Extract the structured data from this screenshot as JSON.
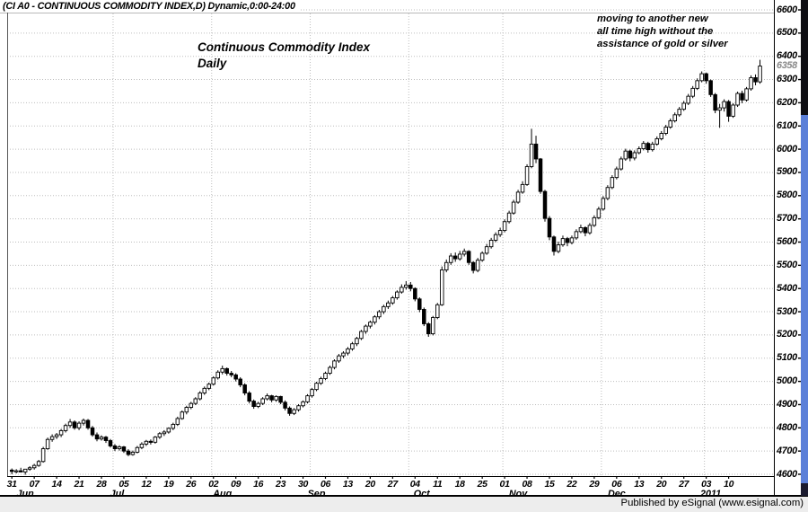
{
  "window": {
    "title": "(CI A0 - CONTINUOUS COMMODITY INDEX,D) Dynamic,0:00-24:00",
    "publisher": "Published by eSignal (www.esignal.com)"
  },
  "annotations": {
    "main": "Continuous Commodity Index\nDaily",
    "note": "moving to another new\nall time high without the\nassistance of gold or silver"
  },
  "colors": {
    "grid": "#bdbdbd",
    "candle_up_fill": "#ffffff",
    "candle_down_fill": "#000000",
    "candle_stroke": "#000000",
    "last_price_label": "#8a8a8a",
    "scrollbar_track": "#5b7fd8",
    "scrollbar_thumb": "#0d0d12"
  },
  "chart_data": {
    "type": "candlestick",
    "title": "Continuous Commodity Index Daily",
    "y_axis": {
      "min": 4600,
      "max": 6600,
      "step": 100,
      "last_price": 6358
    },
    "x_axis": {
      "week_ticks": [
        "31",
        "07",
        "14",
        "21",
        "28",
        "05",
        "12",
        "19",
        "26",
        "02",
        "09",
        "16",
        "23",
        "30",
        "06",
        "13",
        "20",
        "27",
        "04",
        "11",
        "18",
        "25",
        "01",
        "08",
        "15",
        "22",
        "29",
        "06",
        "13",
        "20",
        "27",
        "03",
        "10"
      ],
      "months": [
        {
          "label": "Jun",
          "day": 3
        },
        {
          "label": "Jul",
          "day": 23.5
        },
        {
          "label": "Aug",
          "day": 47
        },
        {
          "label": "Sep",
          "day": 68
        },
        {
          "label": "Oct",
          "day": 91.5
        },
        {
          "label": "Nov",
          "day": 113
        },
        {
          "label": "Dec",
          "day": 135
        },
        {
          "label": "2011",
          "day": 156
        }
      ],
      "month_grid_days": [
        23,
        45,
        67,
        89,
        110,
        132,
        155
      ]
    },
    "candles": [
      [
        4618,
        4625,
        4600,
        4612
      ],
      [
        4612,
        4622,
        4604,
        4615
      ],
      [
        4615,
        4628,
        4608,
        4610
      ],
      [
        4610,
        4618,
        4598,
        4622
      ],
      [
        4622,
        4635,
        4615,
        4628
      ],
      [
        4628,
        4645,
        4620,
        4638
      ],
      [
        4638,
        4662,
        4632,
        4655
      ],
      [
        4655,
        4718,
        4650,
        4710
      ],
      [
        4710,
        4758,
        4705,
        4750
      ],
      [
        4750,
        4772,
        4740,
        4762
      ],
      [
        4762,
        4778,
        4752,
        4770
      ],
      [
        4770,
        4795,
        4760,
        4788
      ],
      [
        4788,
        4818,
        4780,
        4810
      ],
      [
        4810,
        4838,
        4800,
        4825
      ],
      [
        4825,
        4832,
        4792,
        4800
      ],
      [
        4800,
        4828,
        4790,
        4820
      ],
      [
        4820,
        4840,
        4810,
        4832
      ],
      [
        4832,
        4838,
        4792,
        4800
      ],
      [
        4800,
        4808,
        4762,
        4770
      ],
      [
        4770,
        4780,
        4742,
        4752
      ],
      [
        4752,
        4768,
        4745,
        4760
      ],
      [
        4760,
        4765,
        4735,
        4745
      ],
      [
        4745,
        4752,
        4715,
        4722
      ],
      [
        4722,
        4730,
        4700,
        4710
      ],
      [
        4710,
        4725,
        4702,
        4718
      ],
      [
        4718,
        4722,
        4692,
        4700
      ],
      [
        4700,
        4708,
        4678,
        4685
      ],
      [
        4685,
        4702,
        4680,
        4695
      ],
      [
        4695,
        4722,
        4690,
        4715
      ],
      [
        4715,
        4738,
        4708,
        4730
      ],
      [
        4730,
        4748,
        4722,
        4742
      ],
      [
        4742,
        4750,
        4728,
        4738
      ],
      [
        4738,
        4765,
        4732,
        4760
      ],
      [
        4760,
        4782,
        4752,
        4775
      ],
      [
        4775,
        4790,
        4765,
        4782
      ],
      [
        4782,
        4802,
        4775,
        4798
      ],
      [
        4798,
        4822,
        4790,
        4815
      ],
      [
        4815,
        4848,
        4808,
        4840
      ],
      [
        4840,
        4875,
        4835,
        4868
      ],
      [
        4868,
        4895,
        4858,
        4888
      ],
      [
        4888,
        4912,
        4880,
        4905
      ],
      [
        4905,
        4932,
        4898,
        4925
      ],
      [
        4925,
        4958,
        4918,
        4950
      ],
      [
        4950,
        4978,
        4942,
        4970
      ],
      [
        4970,
        4995,
        4962,
        4988
      ],
      [
        4988,
        5022,
        4982,
        5015
      ],
      [
        5015,
        5048,
        5008,
        5040
      ],
      [
        5040,
        5068,
        5030,
        5055
      ],
      [
        5055,
        5060,
        5025,
        5035
      ],
      [
        5035,
        5045,
        5018,
        5028
      ],
      [
        5028,
        5035,
        5000,
        5010
      ],
      [
        5010,
        5018,
        4975,
        4985
      ],
      [
        4985,
        4992,
        4940,
        4950
      ],
      [
        4950,
        4958,
        4905,
        4915
      ],
      [
        4915,
        4922,
        4882,
        4892
      ],
      [
        4892,
        4912,
        4885,
        4905
      ],
      [
        4905,
        4932,
        4898,
        4925
      ],
      [
        4925,
        4948,
        4918,
        4938
      ],
      [
        4938,
        4942,
        4910,
        4920
      ],
      [
        4920,
        4940,
        4912,
        4935
      ],
      [
        4935,
        4938,
        4902,
        4910
      ],
      [
        4910,
        4918,
        4875,
        4885
      ],
      [
        4885,
        4892,
        4852,
        4862
      ],
      [
        4862,
        4885,
        4855,
        4878
      ],
      [
        4878,
        4902,
        4870,
        4895
      ],
      [
        4895,
        4918,
        4888,
        4912
      ],
      [
        4912,
        4945,
        4905,
        4938
      ],
      [
        4938,
        4972,
        4930,
        4965
      ],
      [
        4965,
        4998,
        4958,
        4992
      ],
      [
        4992,
        5020,
        4985,
        5012
      ],
      [
        5012,
        5042,
        5005,
        5035
      ],
      [
        5035,
        5068,
        5028,
        5060
      ],
      [
        5060,
        5095,
        5052,
        5088
      ],
      [
        5088,
        5118,
        5080,
        5110
      ],
      [
        5110,
        5130,
        5100,
        5122
      ],
      [
        5122,
        5148,
        5112,
        5140
      ],
      [
        5140,
        5170,
        5132,
        5162
      ],
      [
        5162,
        5192,
        5152,
        5185
      ],
      [
        5185,
        5222,
        5178,
        5215
      ],
      [
        5215,
        5245,
        5205,
        5238
      ],
      [
        5238,
        5262,
        5228,
        5255
      ],
      [
        5255,
        5285,
        5245,
        5278
      ],
      [
        5278,
        5308,
        5268,
        5300
      ],
      [
        5300,
        5330,
        5290,
        5322
      ],
      [
        5322,
        5348,
        5312,
        5338
      ],
      [
        5338,
        5368,
        5330,
        5360
      ],
      [
        5360,
        5392,
        5352,
        5385
      ],
      [
        5385,
        5418,
        5378,
        5405
      ],
      [
        5405,
        5432,
        5395,
        5415
      ],
      [
        5415,
        5428,
        5388,
        5400
      ],
      [
        5400,
        5405,
        5345,
        5355
      ],
      [
        5355,
        5362,
        5298,
        5310
      ],
      [
        5310,
        5318,
        5238,
        5248
      ],
      [
        5248,
        5255,
        5192,
        5205
      ],
      [
        5205,
        5282,
        5198,
        5275
      ],
      [
        5275,
        5338,
        5268,
        5330
      ],
      [
        5330,
        5495,
        5325,
        5480
      ],
      [
        5480,
        5525,
        5470,
        5512
      ],
      [
        5512,
        5552,
        5502,
        5540
      ],
      [
        5540,
        5555,
        5515,
        5528
      ],
      [
        5528,
        5562,
        5520,
        5548
      ],
      [
        5548,
        5572,
        5538,
        5560
      ],
      [
        5560,
        5565,
        5502,
        5512
      ],
      [
        5512,
        5518,
        5465,
        5478
      ],
      [
        5478,
        5532,
        5470,
        5522
      ],
      [
        5522,
        5560,
        5515,
        5552
      ],
      [
        5552,
        5592,
        5545,
        5580
      ],
      [
        5580,
        5618,
        5572,
        5608
      ],
      [
        5608,
        5642,
        5600,
        5632
      ],
      [
        5632,
        5662,
        5622,
        5650
      ],
      [
        5650,
        5698,
        5642,
        5688
      ],
      [
        5688,
        5735,
        5680,
        5725
      ],
      [
        5725,
        5782,
        5718,
        5772
      ],
      [
        5772,
        5825,
        5765,
        5815
      ],
      [
        5815,
        5862,
        5808,
        5848
      ],
      [
        5848,
        5935,
        5842,
        5925
      ],
      [
        5925,
        6088,
        5918,
        6022
      ],
      [
        6022,
        6058,
        5940,
        5958
      ],
      [
        5958,
        5962,
        5808,
        5818
      ],
      [
        5818,
        5825,
        5688,
        5702
      ],
      [
        5702,
        5712,
        5608,
        5622
      ],
      [
        5622,
        5628,
        5542,
        5560
      ],
      [
        5560,
        5602,
        5552,
        5588
      ],
      [
        5588,
        5628,
        5580,
        5615
      ],
      [
        5615,
        5622,
        5582,
        5598
      ],
      [
        5598,
        5628,
        5590,
        5618
      ],
      [
        5618,
        5655,
        5610,
        5645
      ],
      [
        5645,
        5675,
        5638,
        5662
      ],
      [
        5662,
        5668,
        5625,
        5640
      ],
      [
        5640,
        5682,
        5632,
        5672
      ],
      [
        5672,
        5715,
        5665,
        5705
      ],
      [
        5705,
        5752,
        5698,
        5742
      ],
      [
        5742,
        5798,
        5735,
        5788
      ],
      [
        5788,
        5845,
        5780,
        5835
      ],
      [
        5835,
        5888,
        5828,
        5878
      ],
      [
        5878,
        5925,
        5870,
        5915
      ],
      [
        5915,
        5968,
        5908,
        5958
      ],
      [
        5958,
        6002,
        5950,
        5992
      ],
      [
        5992,
        5998,
        5948,
        5962
      ],
      [
        5962,
        5995,
        5952,
        5985
      ],
      [
        5985,
        6012,
        5978,
        6002
      ],
      [
        6002,
        6035,
        5995,
        6025
      ],
      [
        6025,
        6032,
        5985,
        5998
      ],
      [
        5998,
        6032,
        5990,
        6022
      ],
      [
        6022,
        6055,
        6015,
        6045
      ],
      [
        6045,
        6078,
        6038,
        6068
      ],
      [
        6068,
        6105,
        6060,
        6095
      ],
      [
        6095,
        6132,
        6088,
        6122
      ],
      [
        6122,
        6158,
        6115,
        6148
      ],
      [
        6148,
        6182,
        6140,
        6172
      ],
      [
        6172,
        6208,
        6165,
        6198
      ],
      [
        6198,
        6238,
        6190,
        6228
      ],
      [
        6228,
        6272,
        6220,
        6262
      ],
      [
        6262,
        6305,
        6255,
        6295
      ],
      [
        6295,
        6335,
        6288,
        6325
      ],
      [
        6325,
        6330,
        6282,
        6295
      ],
      [
        6295,
        6300,
        6225,
        6235
      ],
      [
        6235,
        6242,
        6155,
        6168
      ],
      [
        6168,
        6195,
        6092,
        6178
      ],
      [
        6178,
        6215,
        6162,
        6205
      ],
      [
        6205,
        6212,
        6118,
        6142
      ],
      [
        6142,
        6198,
        6135,
        6190
      ],
      [
        6190,
        6248,
        6182,
        6240
      ],
      [
        6240,
        6252,
        6198,
        6212
      ],
      [
        6212,
        6268,
        6205,
        6260
      ],
      [
        6260,
        6318,
        6252,
        6308
      ],
      [
        6308,
        6322,
        6275,
        6290
      ],
      [
        6290,
        6385,
        6282,
        6358
      ]
    ]
  }
}
